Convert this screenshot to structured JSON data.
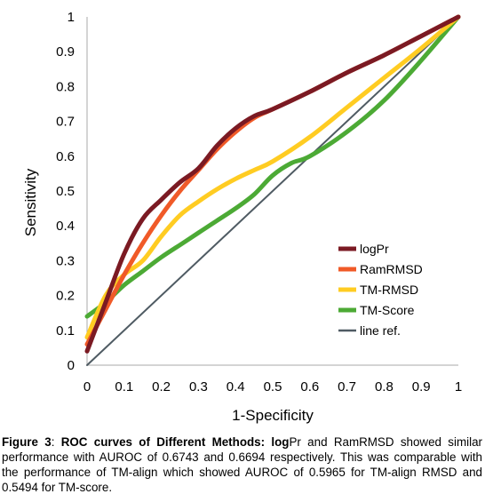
{
  "chart_data": {
    "type": "line",
    "title": "",
    "xlabel": "1-Specificity",
    "ylabel": "Sensitivity",
    "xlim": [
      0,
      1
    ],
    "ylim": [
      0,
      1
    ],
    "x_ticks": [
      "0",
      "0.1",
      "0.2",
      "0.3",
      "0.4",
      "0.5",
      "0.6",
      "0.7",
      "0.8",
      "0.9",
      "1"
    ],
    "y_ticks": [
      "0",
      "0.1",
      "0.2",
      "0.3",
      "0.4",
      "0.5",
      "0.6",
      "0.7",
      "0.8",
      "0.9",
      "1"
    ],
    "grid": false,
    "legend_position": "bottom-right",
    "series": [
      {
        "name": "logPr",
        "color": "#7b1a23",
        "x": [
          0,
          0.05,
          0.1,
          0.15,
          0.2,
          0.25,
          0.3,
          0.35,
          0.4,
          0.45,
          0.5,
          0.6,
          0.7,
          0.8,
          0.9,
          1.0
        ],
        "y": [
          0.04,
          0.18,
          0.32,
          0.42,
          0.475,
          0.525,
          0.565,
          0.63,
          0.68,
          0.715,
          0.735,
          0.785,
          0.84,
          0.89,
          0.945,
          1.0
        ]
      },
      {
        "name": "RamRMSD",
        "color": "#f05a28",
        "x": [
          0,
          0.05,
          0.1,
          0.15,
          0.2,
          0.25,
          0.3,
          0.35,
          0.4,
          0.45,
          0.5,
          0.6,
          0.7,
          0.8,
          0.9,
          1.0
        ],
        "y": [
          0.06,
          0.16,
          0.26,
          0.35,
          0.43,
          0.5,
          0.56,
          0.62,
          0.67,
          0.71,
          0.735,
          0.785,
          0.84,
          0.89,
          0.945,
          1.0
        ]
      },
      {
        "name": "TM-RMSD",
        "color": "#ffcc22",
        "x": [
          0,
          0.05,
          0.1,
          0.15,
          0.2,
          0.25,
          0.3,
          0.35,
          0.4,
          0.45,
          0.5,
          0.6,
          0.7,
          0.8,
          0.9,
          1.0
        ],
        "y": [
          0.08,
          0.2,
          0.26,
          0.3,
          0.37,
          0.43,
          0.47,
          0.505,
          0.535,
          0.56,
          0.585,
          0.655,
          0.74,
          0.825,
          0.91,
          1.0
        ]
      },
      {
        "name": "TM-Score",
        "color": "#4caa35",
        "x": [
          0,
          0.05,
          0.1,
          0.15,
          0.2,
          0.25,
          0.3,
          0.35,
          0.4,
          0.45,
          0.5,
          0.55,
          0.6,
          0.7,
          0.8,
          0.9,
          1.0
        ],
        "y": [
          0.14,
          0.18,
          0.23,
          0.27,
          0.31,
          0.345,
          0.38,
          0.415,
          0.45,
          0.49,
          0.545,
          0.58,
          0.6,
          0.67,
          0.76,
          0.875,
          1.0
        ]
      },
      {
        "name": "line ref.",
        "color": "#4f5b63",
        "x": [
          0,
          1
        ],
        "y": [
          0,
          1
        ]
      }
    ]
  },
  "caption": {
    "label": "Figure 3",
    "separator": ": ",
    "heading": "ROC curves of Different Methods: log",
    "body": "Pr and RamRMSD showed similar performance with AUROC of 0.6743 and 0.6694 respectively. This was comparable with the performance of TM-align which showed AUROC of 0.5965 for TM-align RMSD and 0.5494 for TM-score."
  }
}
